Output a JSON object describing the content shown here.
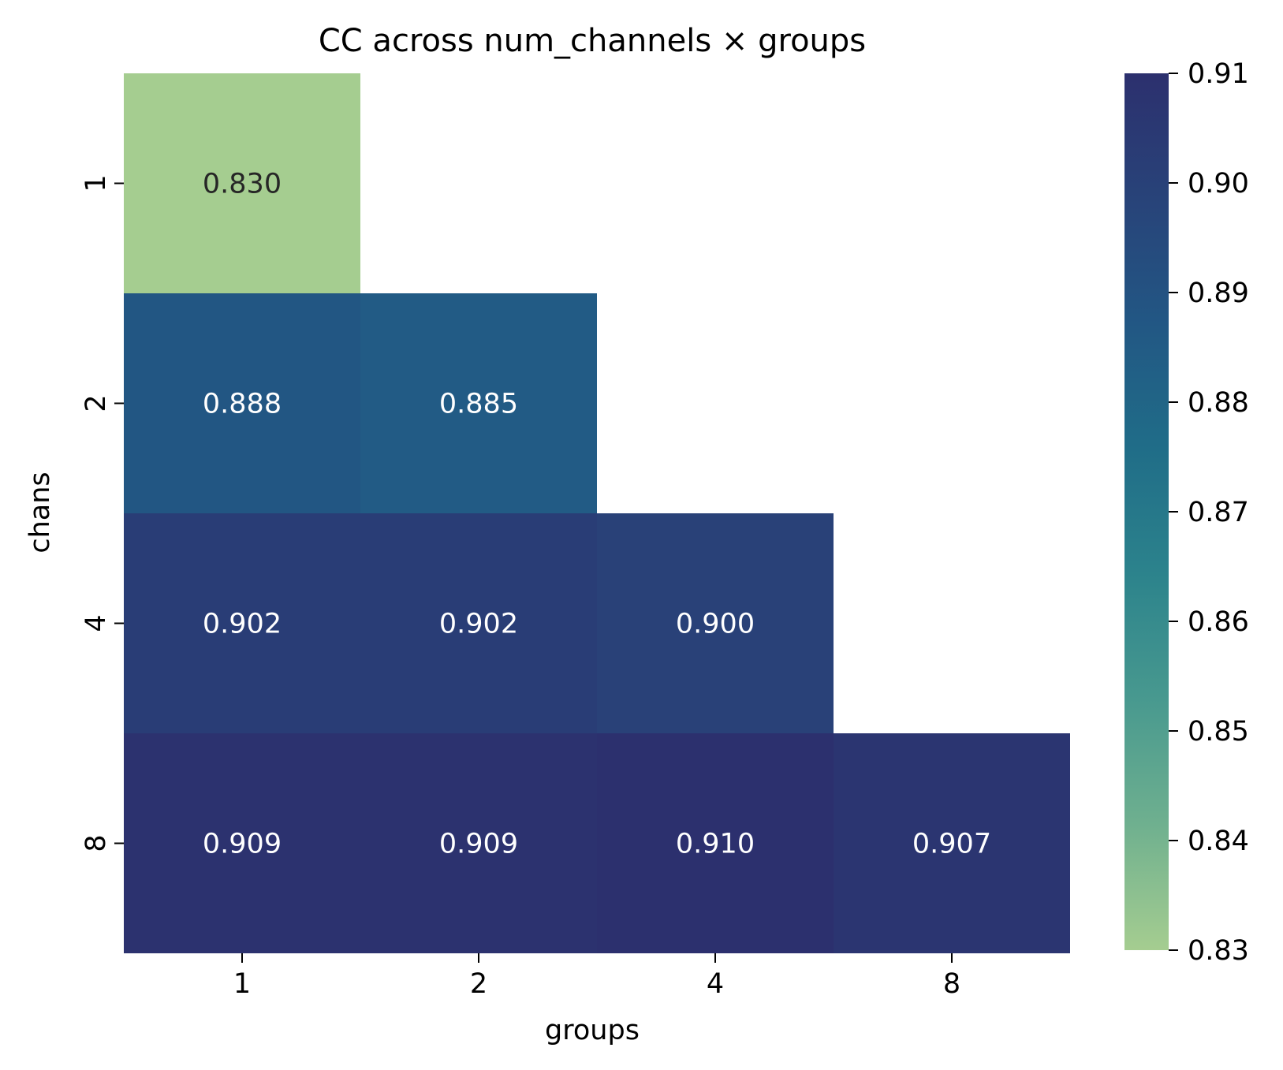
{
  "chart_data": {
    "type": "heatmap",
    "title": "CC across num_channels × groups",
    "xlabel": "groups",
    "ylabel": "chans",
    "x_categories": [
      "1",
      "2",
      "4",
      "8"
    ],
    "y_categories": [
      "1",
      "2",
      "4",
      "8"
    ],
    "values": [
      [
        0.83,
        null,
        null,
        null
      ],
      [
        0.888,
        0.885,
        null,
        null
      ],
      [
        0.902,
        0.902,
        0.9,
        null
      ],
      [
        0.909,
        0.909,
        0.91,
        0.907
      ]
    ],
    "value_labels": [
      [
        "0.830",
        null,
        null,
        null
      ],
      [
        "0.888",
        "0.885",
        null,
        null
      ],
      [
        "0.902",
        "0.902",
        "0.900",
        null
      ],
      [
        "0.909",
        "0.909",
        "0.910",
        "0.907"
      ]
    ],
    "colorbar": {
      "min": 0.83,
      "max": 0.91,
      "ticks": [
        "0.83",
        "0.84",
        "0.85",
        "0.86",
        "0.87",
        "0.88",
        "0.89",
        "0.90",
        "0.91"
      ],
      "colormap": "crest",
      "color_stops": [
        "#a5cd90",
        "#6fb08f",
        "#48998f",
        "#2c838c",
        "#206d88",
        "#225784",
        "#284379",
        "#2c306e"
      ]
    },
    "annotation_colors": {
      "dark_text": "#262626",
      "light_text": "#ffffff"
    },
    "grid": false
  }
}
